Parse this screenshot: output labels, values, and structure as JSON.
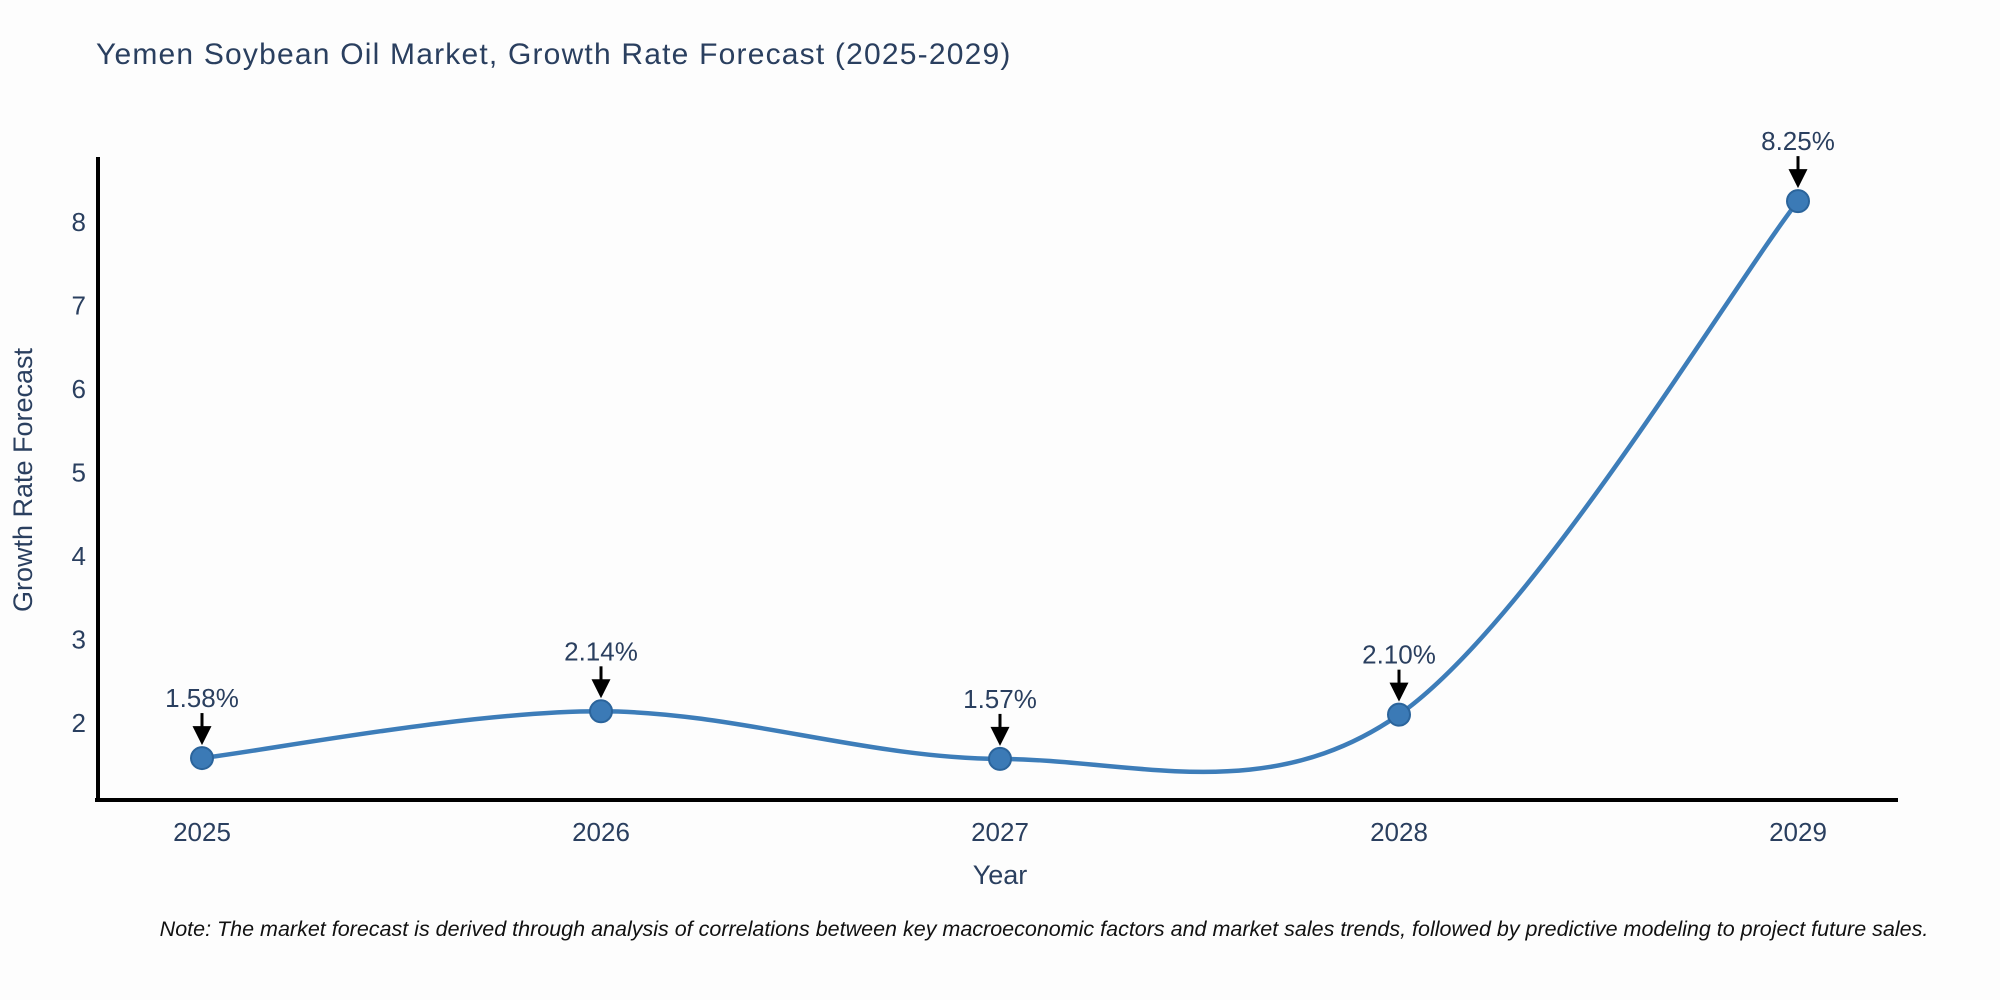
{
  "chart_data": {
    "type": "line",
    "title": "Yemen Soybean Oil Market, Growth Rate Forecast (2025-2029)",
    "categories": [
      "2025",
      "2026",
      "2027",
      "2028",
      "2029"
    ],
    "series": [
      {
        "name": "Growth Rate Forecast",
        "values": [
          1.58,
          2.14,
          1.57,
          2.1,
          8.25
        ]
      }
    ],
    "point_labels": [
      "1.58%",
      "2.14%",
      "1.57%",
      "2.10%",
      "8.25%"
    ],
    "xlabel": "Year",
    "ylabel": "Growth Rate Forecast",
    "yticks": [
      2,
      3,
      4,
      5,
      6,
      7,
      8
    ],
    "ylim": [
      1.08,
      8.74
    ],
    "grid": false,
    "legend_position": "none",
    "line_shape": "spline",
    "colors": {
      "line": "#3d7db9",
      "marker_fill": "#3b7ab6",
      "marker_edge": "#2b649b",
      "axis_line": "#000000",
      "text": "#2a3f5f",
      "annotation_arrow": "#000000",
      "footnote_text": "#111111",
      "background": "#fdfdfd"
    }
  },
  "footnote": "Note: The market forecast is derived through analysis of correlations between key macroeconomic factors and market sales trends, followed by predictive modeling to project future sales."
}
